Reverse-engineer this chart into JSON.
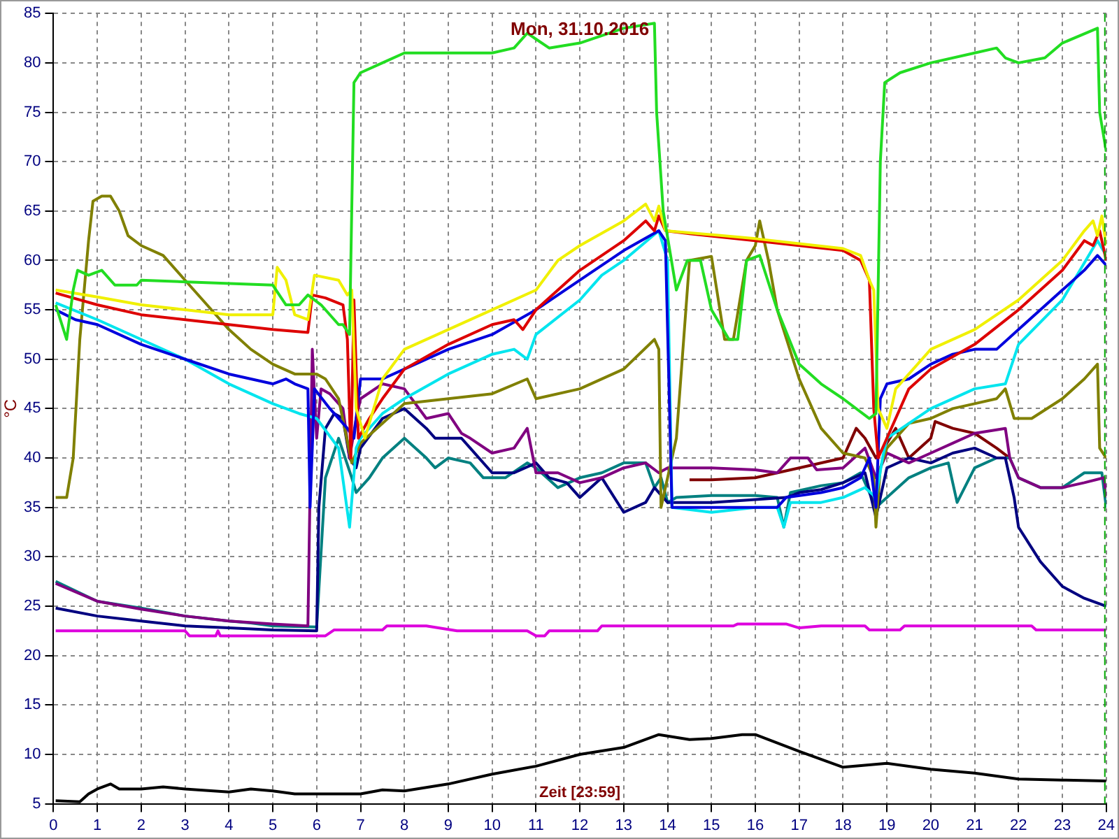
{
  "chart_data": {
    "type": "line",
    "title": "Mon, 31.10.2016",
    "xlabel": "Zeit [23:59]",
    "ylabel": "°C",
    "xlim": [
      0,
      24
    ],
    "xticks": [
      0,
      1,
      2,
      3,
      4,
      5,
      6,
      7,
      8,
      9,
      10,
      11,
      12,
      13,
      14,
      15,
      16,
      17,
      18,
      19,
      20,
      21,
      22,
      23,
      24
    ],
    "ylim": [
      5,
      85
    ],
    "yticks": [
      5,
      10,
      15,
      20,
      25,
      30,
      35,
      40,
      45,
      50,
      55,
      60,
      65,
      70,
      75,
      80,
      85
    ],
    "grid": true,
    "ref_lines": [
      {
        "axis": "x",
        "value": 24,
        "color": "#00aa00",
        "line_style": "dashed"
      }
    ],
    "series": [
      {
        "color": "#22dd22",
        "x": [
          0.05,
          0.3,
          0.45,
          0.55,
          0.8,
          1.1,
          1.4,
          1.9,
          2,
          5,
          5.3,
          5.6,
          5.8,
          6.1,
          6.5,
          6.6,
          6.75,
          6.85,
          7,
          7.5,
          8,
          9,
          10,
          10.5,
          10.8,
          11.3,
          12,
          13,
          13.7,
          13.75,
          13.9,
          14.2,
          14.45,
          14.75,
          15,
          15.4,
          15.6,
          15.8,
          16.1,
          16.5,
          17,
          17.5,
          18,
          18.6,
          18.75,
          18.85,
          18.95,
          19.3,
          20,
          21,
          21.5,
          21.7,
          22,
          22.6,
          23,
          23.8,
          23.85,
          24
        ],
        "values": [
          55.5,
          52,
          57,
          59,
          58.5,
          59,
          57.5,
          57.5,
          58,
          57.5,
          55.5,
          55.5,
          56.5,
          55.5,
          53.5,
          53.5,
          52.5,
          78,
          79,
          80,
          81,
          81,
          81,
          81.5,
          83,
          81.5,
          82,
          83.5,
          84,
          75,
          65,
          57,
          60,
          60,
          55,
          52,
          52,
          60,
          60.5,
          55,
          49.5,
          47.5,
          46,
          44,
          44.5,
          70,
          78,
          79,
          80,
          81,
          81.5,
          80.5,
          80,
          80.5,
          82,
          83.5,
          75,
          71
        ]
      },
      {
        "color": "#f0f000",
        "x": [
          0.05,
          1,
          2,
          3,
          4,
          5,
          5.1,
          5.3,
          5.5,
          5.8,
          5.95,
          6.5,
          6.7,
          6.8,
          6.9,
          7.1,
          7.5,
          8,
          9,
          10,
          11,
          11.5,
          12,
          13,
          13.5,
          13.7,
          13.8,
          13.95,
          14.5,
          16,
          17,
          18,
          18.4,
          18.6,
          18.7,
          18.8,
          19,
          19.2,
          20,
          21,
          22,
          23,
          23.5,
          23.7,
          23.8,
          23.9,
          24
        ],
        "values": [
          57,
          56.3,
          55.5,
          55,
          54.5,
          54.5,
          59.3,
          58,
          54.5,
          54,
          58.5,
          58,
          56.5,
          57,
          45,
          42,
          48,
          51,
          53,
          55,
          57,
          60,
          61.5,
          64,
          65.7,
          64,
          65.5,
          63,
          62.8,
          62.2,
          61.7,
          61.2,
          60.5,
          58,
          57,
          45,
          43,
          47,
          51,
          53,
          56,
          60,
          63,
          64,
          62.5,
          64.5,
          61.5
        ]
      },
      {
        "color": "#dd0000",
        "x": [
          0.05,
          1,
          2,
          3,
          4,
          5,
          5.8,
          5.9,
          6.2,
          6.6,
          6.7,
          6.78,
          6.85,
          6.95,
          7.2,
          7.5,
          8,
          9,
          10,
          10.5,
          10.7,
          11,
          11.5,
          12,
          13,
          13.5,
          13.7,
          13.8,
          13.95,
          14.5,
          16,
          17,
          18,
          18.4,
          18.6,
          18.7,
          18.8,
          19,
          19.5,
          20,
          21,
          22,
          23,
          23.5,
          23.7,
          23.85,
          24
        ],
        "values": [
          56.7,
          55.5,
          54.5,
          54,
          53.5,
          53,
          52.7,
          56.5,
          56.2,
          55.5,
          52,
          40,
          56,
          42,
          44,
          46,
          49,
          51.5,
          53.5,
          54,
          53,
          55,
          57,
          59,
          62,
          64,
          63,
          64.5,
          63,
          62.7,
          62,
          61.5,
          61,
          60,
          58,
          45,
          40,
          42,
          47,
          49,
          51.5,
          55,
          59,
          62,
          61.5,
          63,
          60
        ]
      },
      {
        "color": "#0000dd",
        "x": [
          0.05,
          0.5,
          1,
          2,
          3,
          4,
          5,
          5.3,
          5.5,
          5.8,
          5.85,
          5.95,
          6.3,
          6.7,
          6.85,
          7,
          7.5,
          8,
          9,
          10,
          11,
          12,
          13,
          13.8,
          13.95,
          14.1,
          15,
          16,
          16.5,
          16.7,
          17.5,
          18,
          18.4,
          18.6,
          18.75,
          18.85,
          19,
          19.5,
          20,
          20.5,
          21,
          21.5,
          22,
          23,
          23.5,
          23.8,
          24
        ],
        "values": [
          55,
          54,
          53.5,
          51.5,
          50,
          48.5,
          47.5,
          48,
          47.5,
          47,
          35,
          47,
          45,
          43,
          42,
          48,
          48,
          49,
          51,
          52.5,
          55,
          58,
          61,
          63,
          62,
          35,
          35,
          35,
          35,
          36,
          36.5,
          37,
          38,
          40,
          35,
          46,
          47.5,
          48,
          49.5,
          50.5,
          51,
          51,
          53,
          57,
          59,
          60.5,
          59.5
        ]
      },
      {
        "color": "#00e5ee",
        "x": [
          0.05,
          1,
          2,
          3,
          4,
          5,
          5.6,
          6,
          6.5,
          6.75,
          6.9,
          7,
          7.5,
          8,
          9,
          10,
          10.5,
          10.8,
          11,
          12,
          12.5,
          13,
          13.8,
          14,
          14.1,
          15,
          16,
          16.5,
          16.65,
          16.8,
          17.5,
          18,
          18.5,
          18.75,
          18.9,
          19,
          20,
          21,
          21.7,
          22,
          23,
          23.8,
          24
        ],
        "values": [
          55.7,
          54,
          52,
          50,
          47.5,
          45.5,
          44.5,
          44,
          41,
          33,
          41,
          42,
          44.5,
          46,
          48.5,
          50.5,
          51,
          50,
          52.5,
          56,
          58.5,
          60,
          63,
          60,
          35,
          34.5,
          35,
          35,
          33,
          35.5,
          35.5,
          36,
          37,
          36,
          40,
          42,
          45,
          47,
          47.5,
          51.5,
          56,
          62,
          60.5
        ]
      },
      {
        "color": "#808000",
        "x": [
          0.05,
          0.3,
          0.45,
          0.6,
          0.8,
          0.9,
          1.1,
          1.3,
          1.5,
          1.7,
          2,
          2.5,
          3,
          3.5,
          4,
          4.5,
          5,
          5.5,
          6,
          6.2,
          6.5,
          6.8,
          7,
          7.5,
          8,
          9,
          10,
          10.8,
          11,
          12,
          13,
          13.7,
          13.8,
          13.85,
          14.2,
          14.5,
          15,
          15.3,
          15.5,
          15.8,
          16,
          16.1,
          16.3,
          16.5,
          17,
          17.5,
          18,
          18.5,
          18.7,
          18.75,
          18.85,
          19,
          19.5,
          20,
          20.5,
          21,
          21.5,
          21.7,
          21.9,
          22.3,
          23,
          23.5,
          23.8,
          23.85,
          24
        ],
        "values": [
          36,
          36,
          40,
          52,
          62,
          66,
          66.5,
          66.5,
          65,
          62.5,
          61.5,
          60.5,
          58,
          55.5,
          53,
          51,
          49.5,
          48.5,
          48.5,
          48,
          46,
          39.5,
          41.5,
          43.5,
          45.5,
          46,
          46.5,
          48,
          46,
          47,
          49,
          52,
          51,
          35,
          42,
          60,
          60.4,
          52,
          52,
          60,
          61.5,
          64,
          60,
          55,
          48,
          43,
          40.5,
          40,
          38,
          33,
          39,
          41,
          43.5,
          44,
          45,
          45.5,
          46,
          47,
          44,
          44,
          46,
          48,
          49.5,
          41,
          40
        ]
      },
      {
        "color": "#800080",
        "x": [
          0.05,
          1,
          2,
          3,
          4,
          5,
          5.8,
          5.9,
          6,
          6.1,
          6.3,
          6.6,
          6.75,
          6.9,
          7,
          7.5,
          8,
          8.5,
          9,
          9.3,
          9.5,
          10,
          10.5,
          10.8,
          11,
          11.5,
          12,
          12.5,
          13,
          13.5,
          13.8,
          14,
          15,
          16,
          16.5,
          16.8,
          17.2,
          17.4,
          18,
          18.5,
          18.75,
          19,
          19.5,
          20,
          20.5,
          21,
          21.7,
          21.8,
          22,
          22.5,
          23,
          23.5,
          23.95,
          24
        ],
        "values": [
          27.3,
          25.5,
          24.7,
          24,
          23.5,
          23.2,
          23,
          51,
          42,
          47,
          46.5,
          45,
          40,
          44,
          46,
          47.5,
          47,
          44,
          44.5,
          42.5,
          42,
          40.5,
          41,
          43,
          38.5,
          38.5,
          37.5,
          38,
          39,
          39.5,
          38.5,
          39,
          39,
          38.8,
          38.5,
          40,
          40,
          38.8,
          39,
          41,
          38,
          40.5,
          39.5,
          40.5,
          41.5,
          42.5,
          43,
          40,
          38,
          37,
          37,
          37.5,
          38,
          36
        ]
      },
      {
        "color": "#000080",
        "x": [
          0.05,
          1,
          2,
          3,
          4,
          5,
          6,
          6.05,
          6.2,
          6.4,
          6.6,
          6.75,
          6.9,
          7,
          7.5,
          8,
          8.5,
          8.7,
          9.3,
          9.5,
          10,
          10.5,
          11,
          11.3,
          11.7,
          12,
          12.5,
          13,
          13.5,
          13.7,
          14,
          15,
          16,
          16.7,
          17,
          17.5,
          18,
          18.5,
          18.75,
          19,
          19.5,
          20,
          20.5,
          21,
          21.5,
          21.7,
          21.9,
          22,
          22.5,
          23,
          23.5,
          24
        ],
        "values": [
          24.8,
          24,
          23.5,
          23,
          22.8,
          22.6,
          22.5,
          35,
          43,
          44.5,
          44,
          40,
          39,
          41,
          44,
          45,
          43,
          42,
          42,
          41,
          38.5,
          38.5,
          39.5,
          38,
          37.5,
          36,
          38,
          34.5,
          35.5,
          37,
          35.5,
          35.5,
          35.8,
          36,
          36.5,
          36.8,
          37.5,
          38.5,
          34,
          39,
          40,
          39.5,
          40.5,
          41,
          40,
          40,
          36,
          33,
          29.5,
          27,
          25.8,
          25
        ]
      },
      {
        "color": "#008080",
        "x": [
          0.05,
          1,
          2,
          3,
          4,
          4.5,
          5,
          6,
          6.2,
          6.5,
          6.8,
          6.9,
          7.2,
          7.5,
          8,
          8.5,
          8.7,
          9,
          9.5,
          9.8,
          10.3,
          10.8,
          11,
          11.5,
          12,
          12.5,
          13,
          13.5,
          13.7,
          13.85,
          14,
          14.2,
          15,
          16,
          16.5,
          16.65,
          16.8,
          17.5,
          18,
          18.4,
          18.75,
          19,
          19.5,
          20,
          20.4,
          20.6,
          21,
          21.5,
          21.8,
          22,
          22.5,
          23,
          23.5,
          23.9,
          24
        ],
        "values": [
          27.5,
          25.5,
          24.8,
          24,
          23.5,
          23.3,
          23,
          22.9,
          38,
          42,
          38,
          36.5,
          38,
          40,
          42,
          40,
          39,
          40,
          39.5,
          38,
          38,
          39.5,
          39,
          37,
          38,
          38.5,
          39.5,
          39.5,
          37,
          38,
          35.5,
          36,
          36.2,
          36.2,
          36,
          33,
          36.5,
          37.2,
          37.5,
          38.5,
          35,
          36,
          38,
          39,
          39.5,
          35.5,
          39,
          40,
          40,
          38,
          37,
          37,
          38.5,
          38.5,
          35
        ]
      },
      {
        "color": "#800000",
        "x": [
          14.5,
          15,
          16,
          16.5,
          17,
          18,
          18.3,
          18.5,
          18.75,
          19,
          19.2,
          19.5,
          20,
          20.1,
          20.5,
          21,
          21.5,
          21.8
        ],
        "values": [
          37.8,
          37.8,
          38,
          38.5,
          39,
          40,
          43,
          42,
          40,
          41.5,
          43,
          40,
          42,
          43.7,
          43,
          42.5,
          41,
          40
        ]
      },
      {
        "color": "#dd00dd",
        "x": [
          0.05,
          3,
          3.1,
          3.7,
          3.75,
          3.8,
          6.2,
          6.4,
          7.5,
          7.6,
          8.5,
          9.2,
          10.8,
          11,
          11.2,
          11.3,
          12.4,
          12.5,
          15.5,
          15.6,
          16.7,
          17,
          17.5,
          18.5,
          18.6,
          19.3,
          19.4,
          22.3,
          22.4,
          24
        ],
        "values": [
          22.5,
          22.5,
          22,
          22,
          22.5,
          22,
          22,
          22.6,
          22.6,
          23,
          23,
          22.5,
          22.5,
          22,
          22,
          22.5,
          22.5,
          23,
          23,
          23.2,
          23.2,
          22.8,
          23,
          23,
          22.6,
          22.6,
          23,
          23,
          22.6,
          22.6
        ]
      },
      {
        "color": "#000000",
        "x": [
          0.05,
          0.6,
          0.8,
          1,
          1.3,
          1.5,
          2,
          2.5,
          3,
          4,
          4.5,
          5,
          5.5,
          6,
          7,
          7.5,
          8,
          9,
          10,
          11,
          12,
          13,
          13.8,
          14.5,
          15,
          15.7,
          16,
          17,
          18,
          19,
          20,
          21,
          22,
          23,
          24
        ],
        "values": [
          5.3,
          5.2,
          6,
          6.5,
          7,
          6.5,
          6.5,
          6.7,
          6.5,
          6.2,
          6.5,
          6.3,
          6,
          6,
          6,
          6.4,
          6.3,
          7,
          8,
          8.8,
          10,
          10.7,
          12,
          11.5,
          11.6,
          12,
          12,
          10.3,
          8.7,
          9.1,
          8.5,
          8.1,
          7.5,
          7.4,
          7.3
        ]
      }
    ]
  }
}
